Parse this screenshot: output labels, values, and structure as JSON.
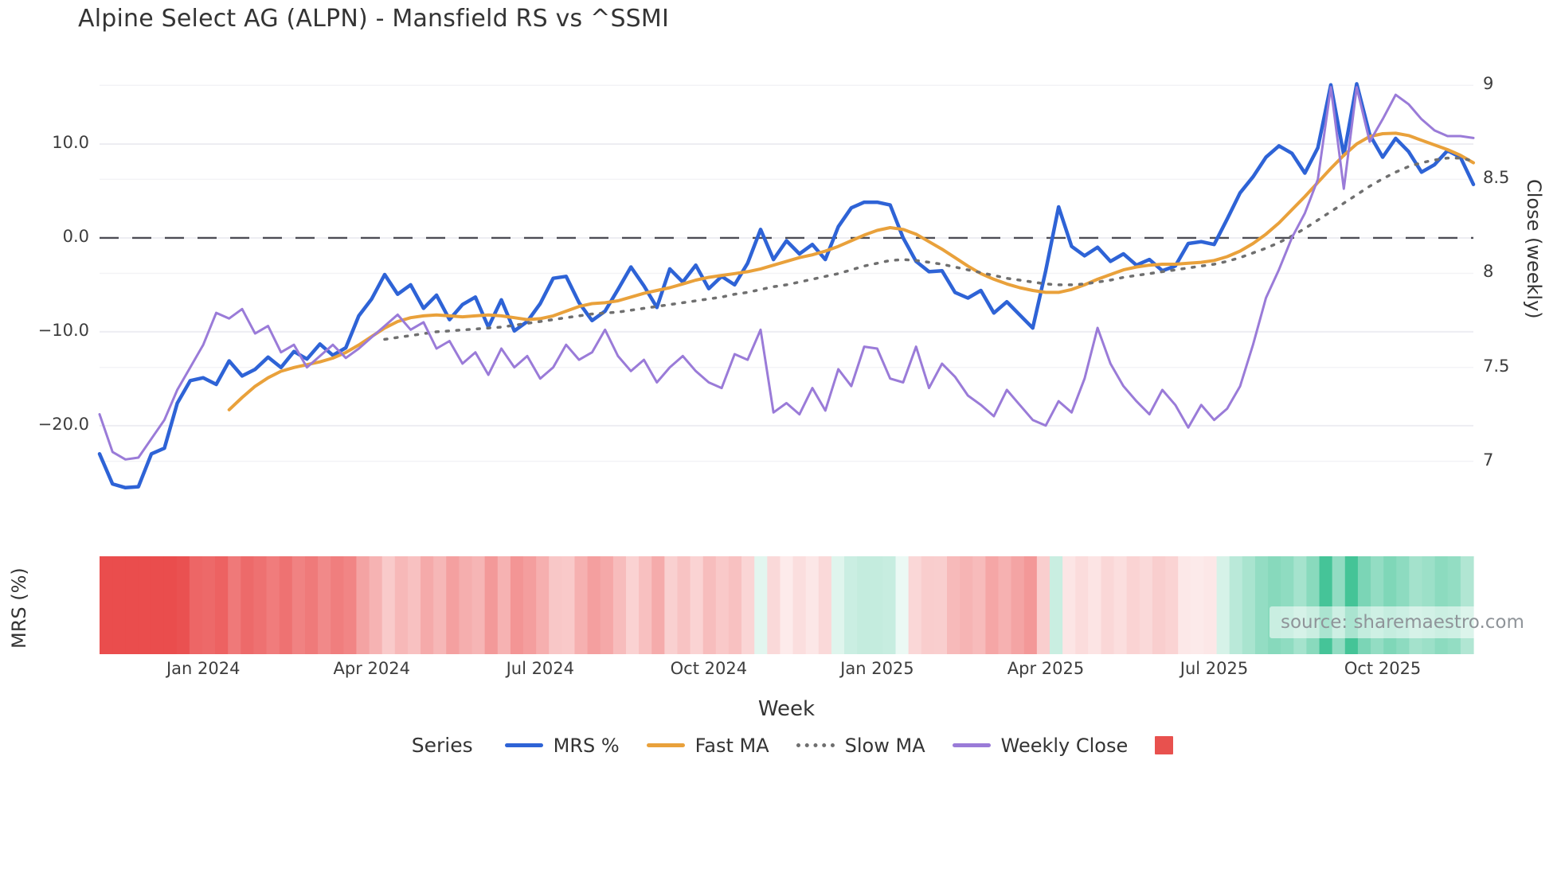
{
  "title": "Alpine Select AG (ALPN) - Mansfield RS vs ^SSMI",
  "source": {
    "text": "source: sharemaestro.com"
  },
  "axes": {
    "left": {
      "label": "MRS (%)",
      "ticks": [
        {
          "value": 10,
          "label": "10.0"
        },
        {
          "value": 0,
          "label": "0.0"
        },
        {
          "value": -10,
          "label": "−10.0"
        },
        {
          "value": -20,
          "label": "−20.0"
        }
      ]
    },
    "right": {
      "label": "Close (weekly)",
      "ticks": [
        {
          "value": 9,
          "label": "9"
        },
        {
          "value": 8.5,
          "label": "8.5"
        },
        {
          "value": 8,
          "label": "8"
        },
        {
          "value": 7.5,
          "label": "7.5"
        },
        {
          "value": 7,
          "label": "7"
        }
      ]
    },
    "x": {
      "label": "Week",
      "ticks": [
        {
          "week": 8,
          "label": "Jan 2024"
        },
        {
          "week": 21,
          "label": "Apr 2024"
        },
        {
          "week": 34,
          "label": "Jul 2024"
        },
        {
          "week": 47,
          "label": "Oct 2024"
        },
        {
          "week": 60,
          "label": "Jan 2025"
        },
        {
          "week": 73,
          "label": "Apr 2025"
        },
        {
          "week": 86,
          "label": "Jul 2025"
        },
        {
          "week": 99,
          "label": "Oct 2025"
        }
      ]
    }
  },
  "legend": {
    "title": "Series",
    "entries": [
      {
        "label": "MRS %",
        "color": "#2e63d6",
        "style": "solid"
      },
      {
        "label": "Fast MA",
        "color": "#e9a13b",
        "style": "solid"
      },
      {
        "label": "Slow MA",
        "color": "#6f6f6f",
        "style": "dotted"
      },
      {
        "label": "Weekly Close",
        "color": "#9a7bd8",
        "style": "solid"
      }
    ],
    "heatmap_swatch_color": "#e8514e"
  },
  "chart_data": {
    "type": "line",
    "x_unit": "week_index",
    "weeks_total": 106,
    "left_range": [
      -30.6,
      20.25
    ],
    "right_range": [
      6.66,
      9.2
    ],
    "zero_line": {
      "value": 0,
      "axis": "left",
      "style": "dashed",
      "color": "#4c4c55"
    },
    "grid": true,
    "legend_position": "bottom",
    "series": [
      {
        "name": "MRS %",
        "axis": "left",
        "color": "#2e63d6",
        "style": "solid",
        "width": 4.5,
        "start_week": 0,
        "values": [
          -23.0,
          -26.2,
          -26.6,
          -26.5,
          -23.0,
          -22.4,
          -17.6,
          -15.2,
          -14.9,
          -15.6,
          -13.1,
          -14.7,
          -14.0,
          -12.7,
          -13.8,
          -12.1,
          -12.9,
          -11.3,
          -12.5,
          -11.7,
          -8.3,
          -6.5,
          -3.9,
          -6.0,
          -5.0,
          -7.5,
          -6.1,
          -8.7,
          -7.1,
          -6.3,
          -9.5,
          -6.6,
          -9.9,
          -8.9,
          -7.0,
          -4.3,
          -4.1,
          -6.9,
          -8.8,
          -7.8,
          -5.5,
          -3.1,
          -5.1,
          -7.4,
          -3.3,
          -4.7,
          -2.9,
          -5.4,
          -4.1,
          -5.0,
          -2.7,
          0.9,
          -2.3,
          -0.3,
          -1.7,
          -0.7,
          -2.3,
          1.2,
          3.2,
          3.8,
          3.8,
          3.5,
          0.0,
          -2.5,
          -3.6,
          -3.5,
          -5.8,
          -6.4,
          -5.6,
          -8.0,
          -6.8,
          -8.2,
          -9.6,
          -3.5,
          3.3,
          -0.9,
          -1.9,
          -1.0,
          -2.5,
          -1.7,
          -2.9,
          -2.3,
          -3.5,
          -3.0,
          -0.6,
          -0.4,
          -0.7,
          2.0,
          4.8,
          6.5,
          8.6,
          9.8,
          9.0,
          6.9,
          9.6,
          16.3,
          8.8,
          16.4,
          11.0,
          8.6,
          10.6,
          9.2,
          7.0,
          7.8,
          9.3,
          8.6,
          5.7
        ]
      },
      {
        "name": "Fast MA",
        "axis": "left",
        "color": "#e9a13b",
        "style": "solid",
        "width": 4,
        "start_week": 10,
        "values": [
          -18.3,
          -17.0,
          -15.8,
          -14.9,
          -14.2,
          -13.8,
          -13.5,
          -13.2,
          -12.8,
          -12.2,
          -11.4,
          -10.5,
          -9.6,
          -8.9,
          -8.5,
          -8.3,
          -8.2,
          -8.3,
          -8.4,
          -8.3,
          -8.2,
          -8.3,
          -8.5,
          -8.7,
          -8.6,
          -8.3,
          -7.8,
          -7.3,
          -7.0,
          -6.9,
          -6.7,
          -6.3,
          -5.9,
          -5.6,
          -5.3,
          -4.9,
          -4.5,
          -4.2,
          -4.0,
          -3.8,
          -3.6,
          -3.3,
          -2.9,
          -2.5,
          -2.1,
          -1.8,
          -1.4,
          -0.9,
          -0.3,
          0.3,
          0.8,
          1.1,
          0.9,
          0.4,
          -0.4,
          -1.2,
          -2.1,
          -3.0,
          -3.8,
          -4.4,
          -4.9,
          -5.3,
          -5.6,
          -5.8,
          -5.8,
          -5.5,
          -5.0,
          -4.4,
          -3.9,
          -3.4,
          -3.1,
          -2.9,
          -2.8,
          -2.8,
          -2.7,
          -2.6,
          -2.4,
          -2.0,
          -1.4,
          -0.6,
          0.4,
          1.6,
          3.0,
          4.4,
          5.9,
          7.4,
          8.8,
          10.0,
          10.8,
          11.1,
          11.15,
          10.9,
          10.4,
          9.9,
          9.4,
          8.8,
          8.0
        ]
      },
      {
        "name": "Slow MA",
        "axis": "left",
        "color": "#6f6f6f",
        "style": "dotted",
        "width": 3.5,
        "start_week": 22,
        "values": [
          -10.8,
          -10.6,
          -10.4,
          -10.2,
          -10.0,
          -9.9,
          -9.8,
          -9.7,
          -9.6,
          -9.5,
          -9.3,
          -9.1,
          -8.9,
          -8.7,
          -8.5,
          -8.3,
          -8.1,
          -8.0,
          -7.9,
          -7.7,
          -7.5,
          -7.3,
          -7.1,
          -6.9,
          -6.7,
          -6.5,
          -6.3,
          -6.0,
          -5.8,
          -5.5,
          -5.2,
          -5.0,
          -4.7,
          -4.4,
          -4.1,
          -3.8,
          -3.4,
          -3.0,
          -2.7,
          -2.4,
          -2.3,
          -2.4,
          -2.6,
          -2.8,
          -3.1,
          -3.4,
          -3.7,
          -4.0,
          -4.3,
          -4.5,
          -4.7,
          -4.9,
          -5.0,
          -5.0,
          -4.9,
          -4.7,
          -4.5,
          -4.2,
          -4.0,
          -3.8,
          -3.6,
          -3.4,
          -3.2,
          -3.0,
          -2.8,
          -2.5,
          -2.1,
          -1.6,
          -1.1,
          -0.5,
          0.2,
          1.0,
          1.9,
          2.8,
          3.7,
          4.6,
          5.5,
          6.3,
          7.0,
          7.6,
          8.0,
          8.3,
          8.5,
          8.5,
          8.2
        ]
      },
      {
        "name": "Weekly Close",
        "axis": "right",
        "color": "#9a7bd8",
        "style": "solid",
        "width": 3,
        "start_week": 0,
        "values": [
          7.25,
          7.05,
          7.01,
          7.02,
          7.12,
          7.22,
          7.38,
          7.5,
          7.62,
          7.79,
          7.76,
          7.81,
          7.68,
          7.72,
          7.58,
          7.62,
          7.5,
          7.56,
          7.62,
          7.55,
          7.6,
          7.66,
          7.72,
          7.78,
          7.7,
          7.74,
          7.6,
          7.64,
          7.52,
          7.58,
          7.46,
          7.6,
          7.5,
          7.56,
          7.44,
          7.5,
          7.62,
          7.54,
          7.58,
          7.7,
          7.56,
          7.48,
          7.54,
          7.42,
          7.5,
          7.56,
          7.48,
          7.42,
          7.39,
          7.57,
          7.54,
          7.7,
          7.26,
          7.31,
          7.25,
          7.39,
          7.27,
          7.49,
          7.4,
          7.61,
          7.6,
          7.44,
          7.42,
          7.61,
          7.39,
          7.52,
          7.45,
          7.35,
          7.3,
          7.24,
          7.38,
          7.3,
          7.22,
          7.19,
          7.32,
          7.26,
          7.44,
          7.71,
          7.52,
          7.4,
          7.32,
          7.25,
          7.38,
          7.3,
          7.18,
          7.3,
          7.22,
          7.28,
          7.4,
          7.62,
          7.87,
          8.02,
          8.19,
          8.32,
          8.5,
          8.99,
          8.45,
          8.99,
          8.7,
          8.82,
          8.95,
          8.9,
          8.82,
          8.76,
          8.73,
          8.73,
          8.72
        ]
      }
    ],
    "heatmap": {
      "source_series": "MRS %",
      "negative_color": "#ea4d4d",
      "positive_color": "#34bf8e",
      "saturation_abs_value": 18
    }
  }
}
